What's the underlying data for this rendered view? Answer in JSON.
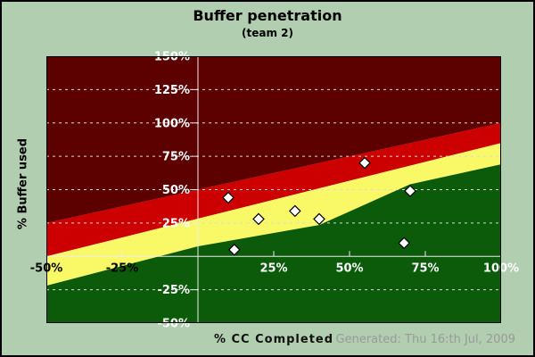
{
  "colors": {
    "background": "#B1CEB1",
    "zone_dark_red": "#5C0000",
    "zone_red": "#CC0000",
    "zone_yellow": "#F9F968",
    "zone_green": "#0B5B0B",
    "gridline": "#D9D9D9",
    "axis_line": "#ECECEC",
    "plot_border": "#000000",
    "y_tick_text": "#FFFFFF",
    "footer_generated_text": "#999999"
  },
  "footer": {
    "generated": "Generated: Thu 16:th Jul, 2009"
  },
  "chart_data": {
    "type": "scatter",
    "title": "Buffer penetration",
    "subtitle": "(team 2)",
    "xlabel": "% CC Completed",
    "ylabel": "% Buffer used",
    "xlim": [
      -50,
      100
    ],
    "ylim": [
      -50,
      150
    ],
    "grid": {
      "y_dashed": [
        125,
        100,
        75,
        50,
        25,
        -25
      ],
      "x_dashed": []
    },
    "axis_lines": {
      "x_at": 0,
      "y_at": 0
    },
    "x_ticks": [
      {
        "value": -50,
        "label": "-50%",
        "color": "#000000"
      },
      {
        "value": -25,
        "label": "-25%",
        "color": "#000000"
      },
      {
        "value": 25,
        "label": "25%",
        "color": "#FFFFFF"
      },
      {
        "value": 50,
        "label": "50%",
        "color": "#FFFFFF"
      },
      {
        "value": 75,
        "label": "75%",
        "color": "#FFFFFF"
      },
      {
        "value": 100,
        "label": "100%",
        "color": "#FFFFFF"
      }
    ],
    "y_ticks": [
      {
        "value": 150,
        "label": "150%"
      },
      {
        "value": 125,
        "label": "125%"
      },
      {
        "value": 100,
        "label": "100%"
      },
      {
        "value": 75,
        "label": "75%"
      },
      {
        "value": 50,
        "label": "50%"
      },
      {
        "value": 25,
        "label": "25%"
      },
      {
        "value": -25,
        "label": "-25%"
      },
      {
        "value": -50,
        "label": "-50%"
      }
    ],
    "x_minor_tick_values": [
      -25,
      25,
      50,
      75
    ],
    "zones": {
      "order_top_to_bottom": [
        "dark_red",
        "red",
        "yellow",
        "green"
      ],
      "darkred_red_boundary": [
        [
          -50,
          25
        ],
        [
          100,
          100
        ]
      ],
      "red_yellow_boundary": [
        [
          -50,
          0
        ],
        [
          100,
          85
        ]
      ],
      "yellow_green_boundary": [
        [
          -50,
          -22
        ],
        [
          0,
          7.5
        ],
        [
          40,
          23.5
        ],
        [
          70,
          54
        ],
        [
          100,
          69
        ]
      ]
    },
    "marker": {
      "shape": "diamond",
      "fill": "#FFFFFF",
      "stroke": "#000000",
      "size": 12
    },
    "points": [
      {
        "x": 10,
        "y": 44
      },
      {
        "x": 12,
        "y": 5
      },
      {
        "x": 20,
        "y": 28
      },
      {
        "x": 32,
        "y": 34
      },
      {
        "x": 40,
        "y": 28
      },
      {
        "x": 55,
        "y": 70
      },
      {
        "x": 68,
        "y": 10
      },
      {
        "x": 70,
        "y": 49
      }
    ]
  }
}
